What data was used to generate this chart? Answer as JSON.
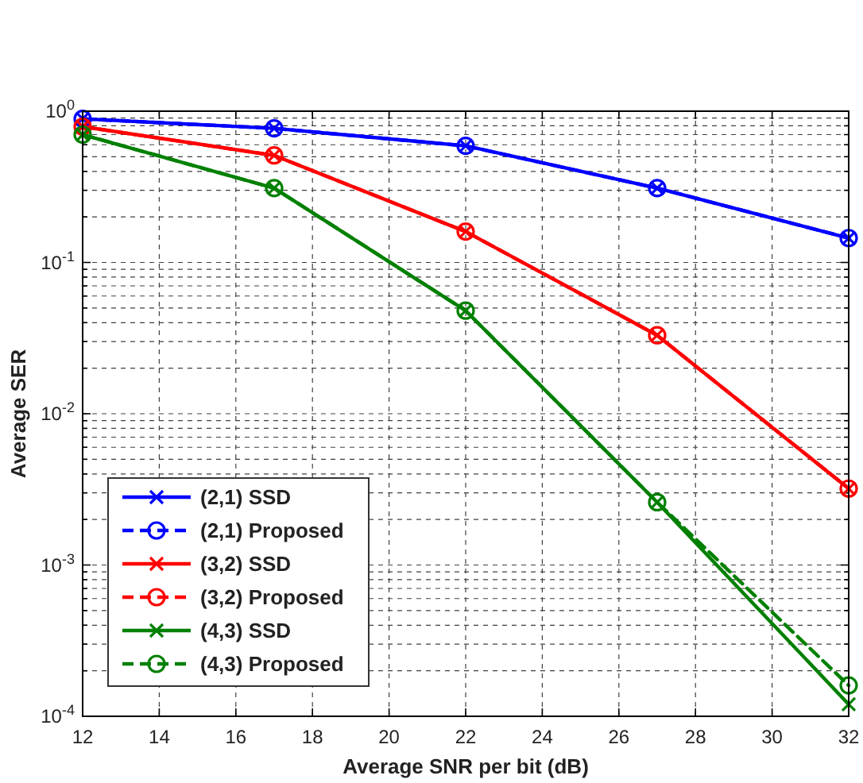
{
  "chart_data": {
    "type": "line",
    "xlabel": "Average SNR per bit (dB)",
    "ylabel": "Average SER",
    "x": [
      12,
      17,
      22,
      27,
      32
    ],
    "xlim": [
      12,
      32
    ],
    "xticks": [
      12,
      14,
      16,
      18,
      20,
      22,
      24,
      26,
      28,
      30,
      32
    ],
    "ylim": [
      0.0001,
      1
    ],
    "yticks": [
      {
        "value": 1,
        "label": "10$^{0}$"
      },
      {
        "value": 0.1,
        "label": "10$^{-1}$"
      },
      {
        "value": 0.01,
        "label": "10$^{-2}$"
      },
      {
        "value": 0.001,
        "label": "10$^{-3}$"
      },
      {
        "value": 0.0001,
        "label": "10$^{-4}$"
      }
    ],
    "log": "y",
    "grid": true,
    "legend": "bottom left",
    "series": [
      {
        "name": "(2,1) SSD",
        "color": "#0000ff",
        "marker": "cross",
        "line_style": "solid",
        "values": [
          0.89,
          0.77,
          0.59,
          0.31,
          0.145
        ]
      },
      {
        "name": "(2,1) Proposed",
        "color": "#0000ff",
        "marker": "circle",
        "line_style": "dashed",
        "values": [
          0.89,
          0.77,
          0.59,
          0.31,
          0.145
        ]
      },
      {
        "name": "(3,2) SSD",
        "color": "#ff0000",
        "marker": "cross",
        "line_style": "solid",
        "values": [
          0.79,
          0.51,
          0.16,
          0.033,
          0.0032
        ]
      },
      {
        "name": "(3,2) Proposed",
        "color": "#ff0000",
        "marker": "circle",
        "line_style": "dashed",
        "values": [
          0.79,
          0.51,
          0.16,
          0.033,
          0.0032
        ]
      },
      {
        "name": "(4,3) SSD",
        "color": "#008000",
        "marker": "cross",
        "line_style": "solid",
        "values": [
          0.7,
          0.31,
          0.048,
          0.0026,
          0.00012
        ]
      },
      {
        "name": "(4,3) Proposed",
        "color": "#008000",
        "marker": "circle",
        "line_style": "dashed",
        "values": [
          0.7,
          0.31,
          0.048,
          0.0026,
          0.00016
        ]
      }
    ]
  }
}
